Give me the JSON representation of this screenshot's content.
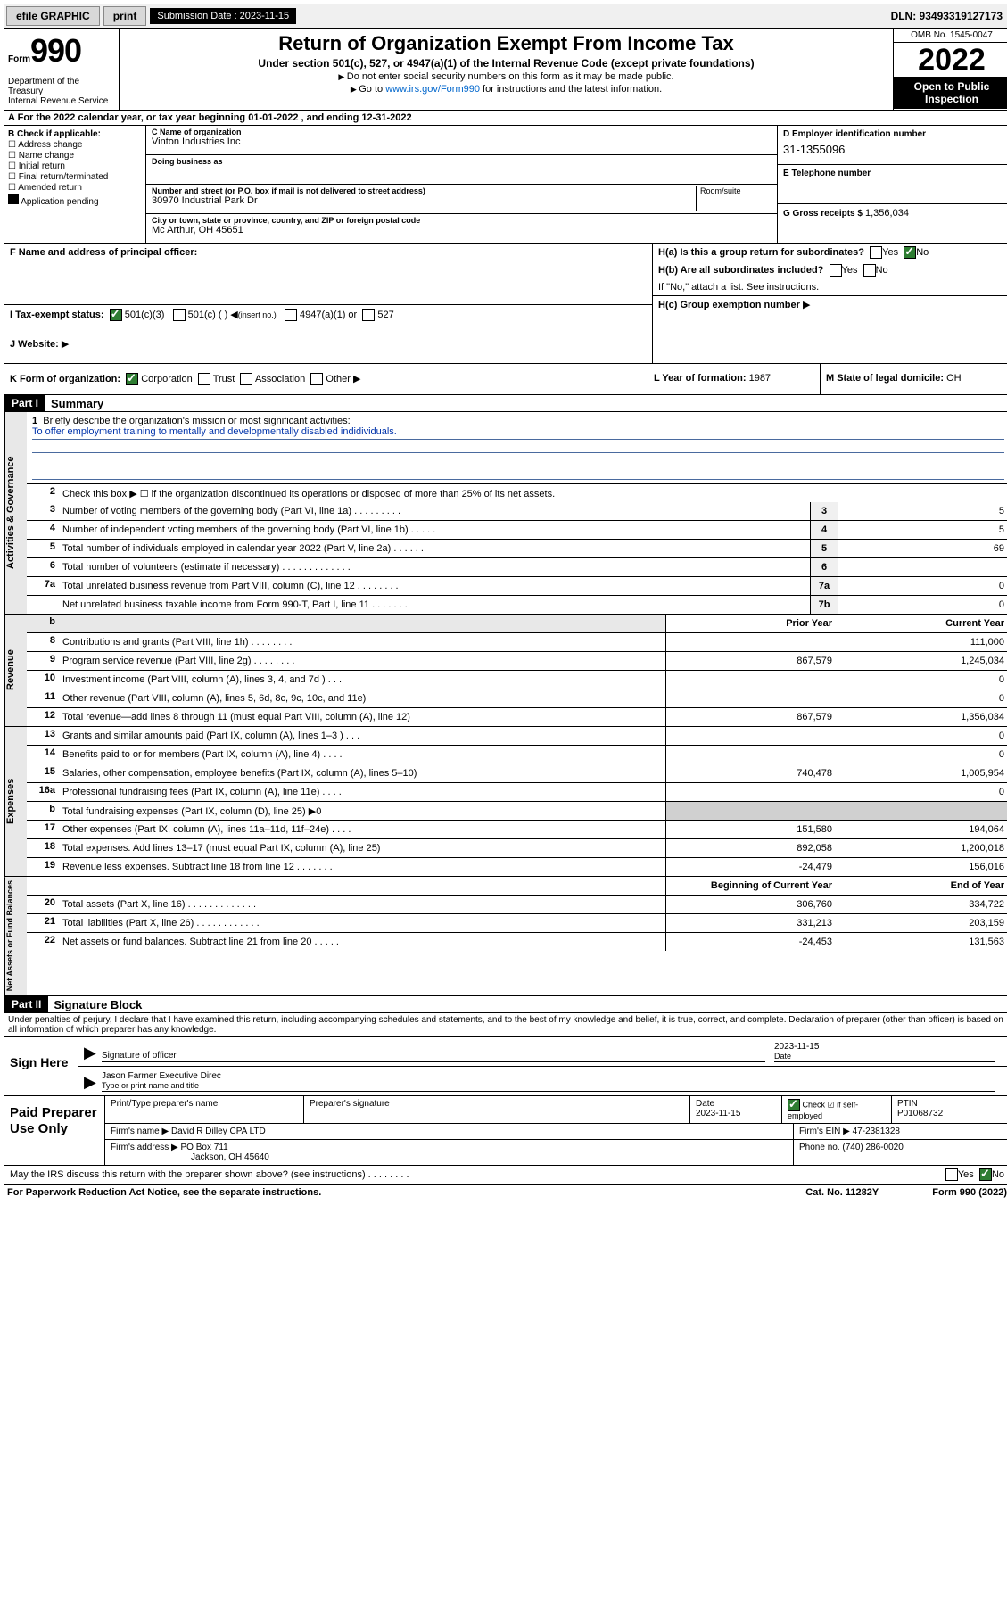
{
  "topbar": {
    "efile": "efile GRAPHIC",
    "print": "print",
    "submission_label": "Submission Date : 2023-11-15",
    "dln": "DLN: 93493319127173"
  },
  "header": {
    "form_prefix": "Form",
    "form_number": "990",
    "dept": "Department of the Treasury",
    "irs": "Internal Revenue Service",
    "title": "Return of Organization Exempt From Income Tax",
    "subtitle": "Under section 501(c), 527, or 4947(a)(1) of the Internal Revenue Code (except private foundations)",
    "instr1": "Do not enter social security numbers on this form as it may be made public.",
    "instr2_pre": "Go to ",
    "instr2_link": "www.irs.gov/Form990",
    "instr2_post": " for instructions and the latest information.",
    "omb": "OMB No. 1545-0047",
    "year": "2022",
    "open_public": "Open to Public Inspection"
  },
  "tax_year_line": "For the 2022 calendar year, or tax year beginning 01-01-2022   , and ending 12-31-2022",
  "section_b": {
    "label": "B Check if applicable:",
    "opts": [
      "Address change",
      "Name change",
      "Initial return",
      "Final return/terminated",
      "Amended return",
      "Application pending"
    ]
  },
  "section_c": {
    "name_lbl": "C Name of organization",
    "name": "Vinton Industries Inc",
    "dba_lbl": "Doing business as",
    "dba": "",
    "addr_lbl": "Number and street (or P.O. box if mail is not delivered to street address)",
    "addr": "30970 Industrial Park Dr",
    "room_lbl": "Room/suite",
    "city_lbl": "City or town, state or province, country, and ZIP or foreign postal code",
    "city": "Mc Arthur, OH   45651"
  },
  "section_d": {
    "lbl": "D Employer identification number",
    "val": "31-1355096"
  },
  "section_e": {
    "lbl": "E Telephone number",
    "val": ""
  },
  "section_g": {
    "lbl": "G Gross receipts $",
    "val": "1,356,034"
  },
  "section_f": {
    "lbl": "F  Name and address of principal officer:",
    "val": ""
  },
  "section_h": {
    "a_lbl": "H(a)  Is this a group return for subordinates?",
    "a_yes": "Yes",
    "a_no": "No",
    "b_lbl": "H(b)  Are all subordinates included?",
    "b_yes": "Yes",
    "b_no": "No",
    "b_note": "If \"No,\" attach a list. See instructions.",
    "c_lbl": "H(c)  Group exemption number"
  },
  "section_i": {
    "lbl": "I   Tax-exempt status:",
    "opt1": "501(c)(3)",
    "opt2": "501(c) (   )",
    "opt2_note": "(insert no.)",
    "opt3": "4947(a)(1) or",
    "opt4": "527"
  },
  "section_j": {
    "lbl": "J   Website:",
    "val": ""
  },
  "section_k": {
    "lbl": "K Form of organization:",
    "opts": [
      "Corporation",
      "Trust",
      "Association",
      "Other"
    ]
  },
  "section_l": {
    "lbl": "L Year of formation:",
    "val": "1987"
  },
  "section_m": {
    "lbl": "M State of legal domicile:",
    "val": "OH"
  },
  "part1": {
    "header": "Part I",
    "title": "Summary",
    "line1_lbl": "Briefly describe the organization's mission or most significant activities:",
    "line1_val": "To offer employment training to mentally and developmentally disabled indidividuals.",
    "line2": "Check this box ▶ ☐  if the organization discontinued its operations or disposed of more than 25% of its net assets.",
    "rows_single": [
      {
        "n": "3",
        "t": "Number of voting members of the governing body (Part VI, line 1a)   .    .    .    .    .    .    .    .    .",
        "b": "3",
        "v": "5"
      },
      {
        "n": "4",
        "t": "Number of independent voting members of the governing body (Part VI, line 1b)  .    .    .    .    .",
        "b": "4",
        "v": "5"
      },
      {
        "n": "5",
        "t": "Total number of individuals employed in calendar year 2022 (Part V, line 2a)   .    .    .    .    .    .",
        "b": "5",
        "v": "69"
      },
      {
        "n": "6",
        "t": "Total number of volunteers (estimate if necessary)   .    .    .    .    .    .    .    .    .    .    .    .    .",
        "b": "6",
        "v": ""
      },
      {
        "n": "7a",
        "t": "Total unrelated business revenue from Part VIII, column (C), line 12  .    .    .    .    .    .    .    .",
        "b": "7a",
        "v": "0"
      },
      {
        "n": "",
        "t": "Net unrelated business taxable income from Form 990-T, Part I, line 11   .    .    .    .    .    .    .",
        "b": "7b",
        "v": "0"
      }
    ],
    "col_headers": {
      "prior": "Prior Year",
      "current": "Current Year"
    },
    "revenue": [
      {
        "n": "8",
        "t": "Contributions and grants (Part VIII, line 1h)   .    .    .    .    .    .    .    .",
        "p": "",
        "c": "111,000"
      },
      {
        "n": "9",
        "t": "Program service revenue (Part VIII, line 2g)   .    .    .    .    .    .    .    .",
        "p": "867,579",
        "c": "1,245,034"
      },
      {
        "n": "10",
        "t": "Investment income (Part VIII, column (A), lines 3, 4, and 7d )   .    .    .",
        "p": "",
        "c": "0"
      },
      {
        "n": "11",
        "t": "Other revenue (Part VIII, column (A), lines 5, 6d, 8c, 9c, 10c, and 11e)",
        "p": "",
        "c": "0"
      },
      {
        "n": "12",
        "t": "Total revenue—add lines 8 through 11 (must equal Part VIII, column (A), line 12)",
        "p": "867,579",
        "c": "1,356,034"
      }
    ],
    "expenses": [
      {
        "n": "13",
        "t": "Grants and similar amounts paid (Part IX, column (A), lines 1–3 )  .    .    .",
        "p": "",
        "c": "0"
      },
      {
        "n": "14",
        "t": "Benefits paid to or for members (Part IX, column (A), line 4)   .    .    .    .",
        "p": "",
        "c": "0"
      },
      {
        "n": "15",
        "t": "Salaries, other compensation, employee benefits (Part IX, column (A), lines 5–10)",
        "p": "740,478",
        "c": "1,005,954"
      },
      {
        "n": "16a",
        "t": "Professional fundraising fees (Part IX, column (A), line 11e)   .    .    .    .",
        "p": "",
        "c": "0"
      },
      {
        "n": "b",
        "t": "Total fundraising expenses (Part IX, column (D), line 25) ▶0",
        "p": "__shade__",
        "c": "__shade__"
      },
      {
        "n": "17",
        "t": "Other expenses (Part IX, column (A), lines 11a–11d, 11f–24e)  .    .    .    .",
        "p": "151,580",
        "c": "194,064"
      },
      {
        "n": "18",
        "t": "Total expenses. Add lines 13–17 (must equal Part IX, column (A), line 25)",
        "p": "892,058",
        "c": "1,200,018"
      },
      {
        "n": "19",
        "t": "Revenue less expenses. Subtract line 18 from line 12 .    .    .    .    .    .    .",
        "p": "-24,479",
        "c": "156,016"
      }
    ],
    "net_headers": {
      "begin": "Beginning of Current Year",
      "end": "End of Year"
    },
    "net": [
      {
        "n": "20",
        "t": "Total assets (Part X, line 16)  .    .    .    .    .    .    .    .    .    .    .    .    .",
        "p": "306,760",
        "c": "334,722"
      },
      {
        "n": "21",
        "t": "Total liabilities (Part X, line 26)  .    .    .    .    .    .    .    .    .    .    .    .",
        "p": "331,213",
        "c": "203,159"
      },
      {
        "n": "22",
        "t": "Net assets or fund balances. Subtract line 21 from line 20  .    .    .    .    .",
        "p": "-24,453",
        "c": "131,563"
      }
    ],
    "side_labels": {
      "act": "Activities & Governance",
      "rev": "Revenue",
      "exp": "Expenses",
      "net": "Net Assets or Fund Balances"
    }
  },
  "part2": {
    "header": "Part II",
    "title": "Signature Block",
    "penalties": "Under penalties of perjury, I declare that I have examined this return, including accompanying schedules and statements, and to the best of my knowledge and belief, it is true, correct, and complete. Declaration of preparer (other than officer) is based on all information of which preparer has any knowledge.",
    "sign_here": "Sign Here",
    "sig_officer_lbl": "Signature of officer",
    "date_lbl": "Date",
    "sig_date": "2023-11-15",
    "officer_name": "Jason Farmer  Executive Direc",
    "type_name_lbl": "Type or print name and title",
    "paid_prep": "Paid Preparer Use Only",
    "prep_name_lbl": "Print/Type preparer's name",
    "prep_sig_lbl": "Preparer's signature",
    "prep_date_lbl": "Date",
    "prep_date": "2023-11-15",
    "self_emp": "Check ☑ if self-employed",
    "ptin_lbl": "PTIN",
    "ptin": "P01068732",
    "firm_name_lbl": "Firm's name    ▶",
    "firm_name": "David R Dilley CPA LTD",
    "firm_ein_lbl": "Firm's EIN ▶",
    "firm_ein": "47-2381328",
    "firm_addr_lbl": "Firm's address ▶",
    "firm_addr1": "PO Box 711",
    "firm_addr2": "Jackson, OH  45640",
    "phone_lbl": "Phone no.",
    "phone": "(740) 286-0020",
    "discuss": "May the IRS discuss this return with the preparer shown above? (see instructions)   .    .    .    .    .    .    .    .",
    "discuss_yes": "Yes",
    "discuss_no": "No"
  },
  "footer": {
    "pra": "For Paperwork Reduction Act Notice, see the separate instructions.",
    "cat": "Cat. No. 11282Y",
    "form": "Form 990 (2022)"
  }
}
